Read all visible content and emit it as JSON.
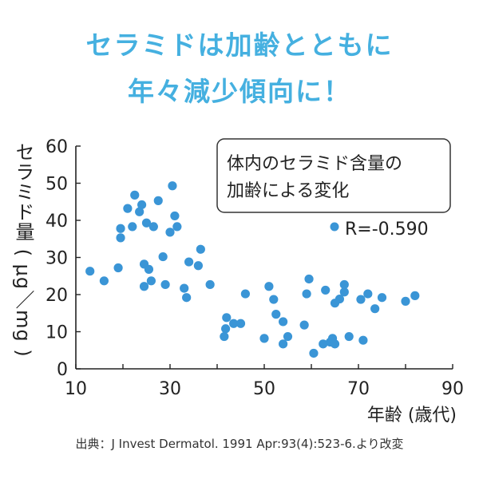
{
  "headline": {
    "line1": "セラミドは加齢とともに",
    "line2": "年々減少傾向に！"
  },
  "annotation": {
    "line1": "体内のセラミド含量の",
    "line2": "加齢による変化",
    "legend_label": "R=-0.590"
  },
  "source": "出典：J Invest Dermatol. 1991 Apr:93(4):523-6.より改変",
  "colors": {
    "headline": "#45b0e0",
    "point": "#3a95d6",
    "axis": "#222222"
  },
  "chart_data": {
    "type": "scatter",
    "xlabel": "年齢 (歳代)",
    "ylabel": "セラミド量 ( μg／mg )",
    "xlim": [
      10,
      90
    ],
    "ylim": [
      0,
      60
    ],
    "xticks": [
      10,
      30,
      50,
      70,
      90
    ],
    "yticks": [
      0,
      10,
      20,
      30,
      40,
      50,
      60
    ],
    "legend_position": "top-right",
    "grid": false,
    "series": [
      {
        "name": "R=-0.590",
        "points": [
          [
            13,
            26.3
          ],
          [
            16,
            23.7
          ],
          [
            19,
            27.2
          ],
          [
            19.5,
            35.3
          ],
          [
            19.5,
            37.8
          ],
          [
            21,
            43.2
          ],
          [
            22,
            38.3
          ],
          [
            22.5,
            46.8
          ],
          [
            23.5,
            42.3
          ],
          [
            24,
            44.2
          ],
          [
            24.5,
            28.2
          ],
          [
            24.5,
            22.2
          ],
          [
            25,
            39.3
          ],
          [
            25.5,
            26.8
          ],
          [
            26,
            23.7
          ],
          [
            26.5,
            38.3
          ],
          [
            27.5,
            45.3
          ],
          [
            28.5,
            30.2
          ],
          [
            29,
            22.7
          ],
          [
            30,
            36.8
          ],
          [
            30.5,
            49.3
          ],
          [
            31,
            41.2
          ],
          [
            31.5,
            38.3
          ],
          [
            33,
            21.7
          ],
          [
            33.5,
            19.2
          ],
          [
            34,
            28.8
          ],
          [
            36,
            27.8
          ],
          [
            36.5,
            32.2
          ],
          [
            38.5,
            22.7
          ],
          [
            41.5,
            8.7
          ],
          [
            41.8,
            10.8
          ],
          [
            42,
            13.8
          ],
          [
            43.5,
            12.2
          ],
          [
            45,
            12.2
          ],
          [
            46,
            20.2
          ],
          [
            50,
            8.2
          ],
          [
            51,
            22.2
          ],
          [
            52,
            18.7
          ],
          [
            52.5,
            14.7
          ],
          [
            54,
            12.7
          ],
          [
            54,
            6.7
          ],
          [
            55,
            8.7
          ],
          [
            58.5,
            11.8
          ],
          [
            59,
            20.2
          ],
          [
            59.5,
            24.2
          ],
          [
            60.5,
            4.2
          ],
          [
            62.5,
            6.7
          ],
          [
            63,
            21.2
          ],
          [
            64,
            7.2
          ],
          [
            64.5,
            8.2
          ],
          [
            65,
            6.7
          ],
          [
            65,
            17.7
          ],
          [
            66,
            18.8
          ],
          [
            67,
            20.7
          ],
          [
            67,
            22.7
          ],
          [
            68,
            8.7
          ],
          [
            70.5,
            18.7
          ],
          [
            71,
            7.7
          ],
          [
            72,
            20.2
          ],
          [
            73.5,
            16.2
          ],
          [
            75,
            19.2
          ],
          [
            80,
            18.2
          ],
          [
            82,
            19.7
          ]
        ]
      }
    ]
  }
}
